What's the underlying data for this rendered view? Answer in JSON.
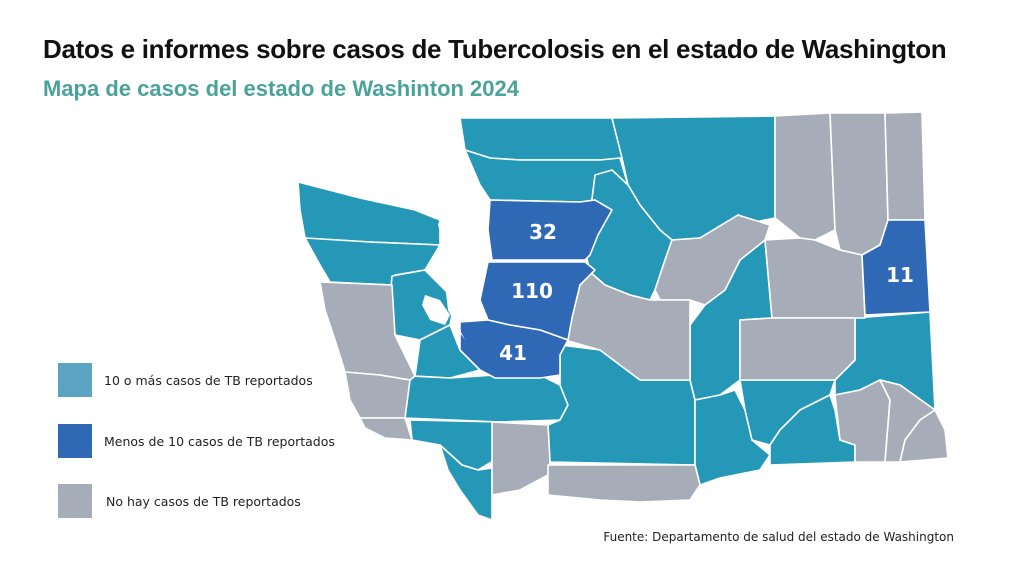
{
  "title": "Datos e informes sobre casos de Tubercolosis en el estado de Washington",
  "subtitle": "Mapa de casos del estado de Washinton 2024",
  "colors": {
    "ten_or_more": "#2598b8",
    "less_than_ten": "#2f68b5",
    "none": "#a6adb9",
    "legend_ten_or_more": "#5ba4c4",
    "subtitle": "#4aa39a"
  },
  "legend": [
    {
      "label": "10 o más casos de TB reportados",
      "color": "#5ba4c4"
    },
    {
      "label": "Menos de 10 casos de TB reportados",
      "color": "#2f68b5"
    },
    {
      "label": "No hay casos de TB reportados",
      "color": "#a6adb9"
    }
  ],
  "county_labels": [
    {
      "name": "snohomish",
      "value": "32"
    },
    {
      "name": "king",
      "value": "110"
    },
    {
      "name": "pierce",
      "value": "41"
    },
    {
      "name": "spokane",
      "value": "11"
    }
  ],
  "source": "Fuente: Departamento de salud del estado de Washington"
}
